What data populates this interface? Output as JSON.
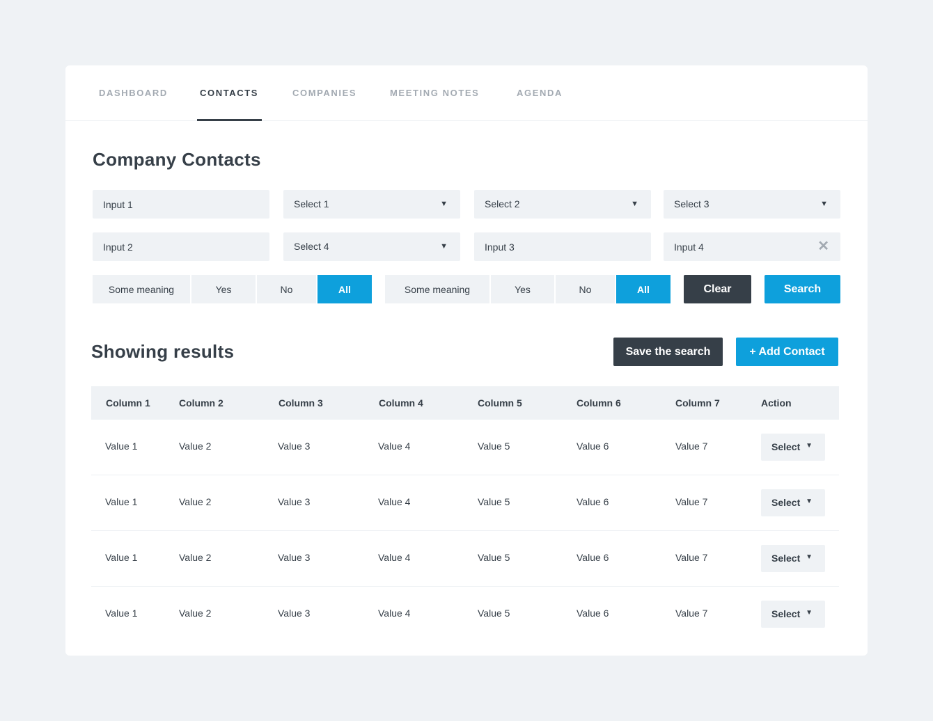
{
  "tabs": [
    {
      "label": "DASHBOARD",
      "active": false
    },
    {
      "label": "CONTACTS",
      "active": true
    },
    {
      "label": "COMPANIES",
      "active": false
    },
    {
      "label": "MEETING NOTES",
      "active": false
    },
    {
      "label": "AGENDA",
      "active": false
    }
  ],
  "page_title": "Company Contacts",
  "filters": {
    "input1": "Input 1",
    "select1": "Select 1",
    "select2": "Select 2",
    "select3": "Select 3",
    "input2": "Input 2",
    "select4": "Select 4",
    "input3": "Input 3",
    "input4": "Input 4",
    "caret": "▼",
    "clear_glyph": "✕"
  },
  "segment1": {
    "options": [
      "Some meaning",
      "Yes",
      "No",
      "All"
    ],
    "selected": "All"
  },
  "segment2": {
    "options": [
      "Some meaning",
      "Yes",
      "No",
      "All"
    ],
    "selected": "All"
  },
  "buttons": {
    "clear": "Clear",
    "search": "Search",
    "save_search": "Save the search",
    "add_contact": "+ Add Contact"
  },
  "results_title": "Showing results",
  "table": {
    "columns": [
      "Column 1",
      "Column 2",
      "Column 3",
      "Column 4",
      "Column 5",
      "Column 6",
      "Column 7",
      "Action"
    ],
    "rows": [
      [
        "Value 1",
        "Value 2",
        "Value 3",
        "Value 4",
        "Value 5",
        "Value 6",
        "Value 7"
      ],
      [
        "Value 1",
        "Value 2",
        "Value 3",
        "Value 4",
        "Value 5",
        "Value 6",
        "Value 7"
      ],
      [
        "Value 1",
        "Value 2",
        "Value 3",
        "Value 4",
        "Value 5",
        "Value 6",
        "Value 7"
      ],
      [
        "Value 1",
        "Value 2",
        "Value 3",
        "Value 4",
        "Value 5",
        "Value 6",
        "Value 7"
      ]
    ],
    "action_label": "Select",
    "action_caret": "▼"
  },
  "colors": {
    "accent": "#0ea0dc",
    "dark": "#363f48",
    "muted": "#a3aab2",
    "field_bg": "#eff2f5"
  }
}
